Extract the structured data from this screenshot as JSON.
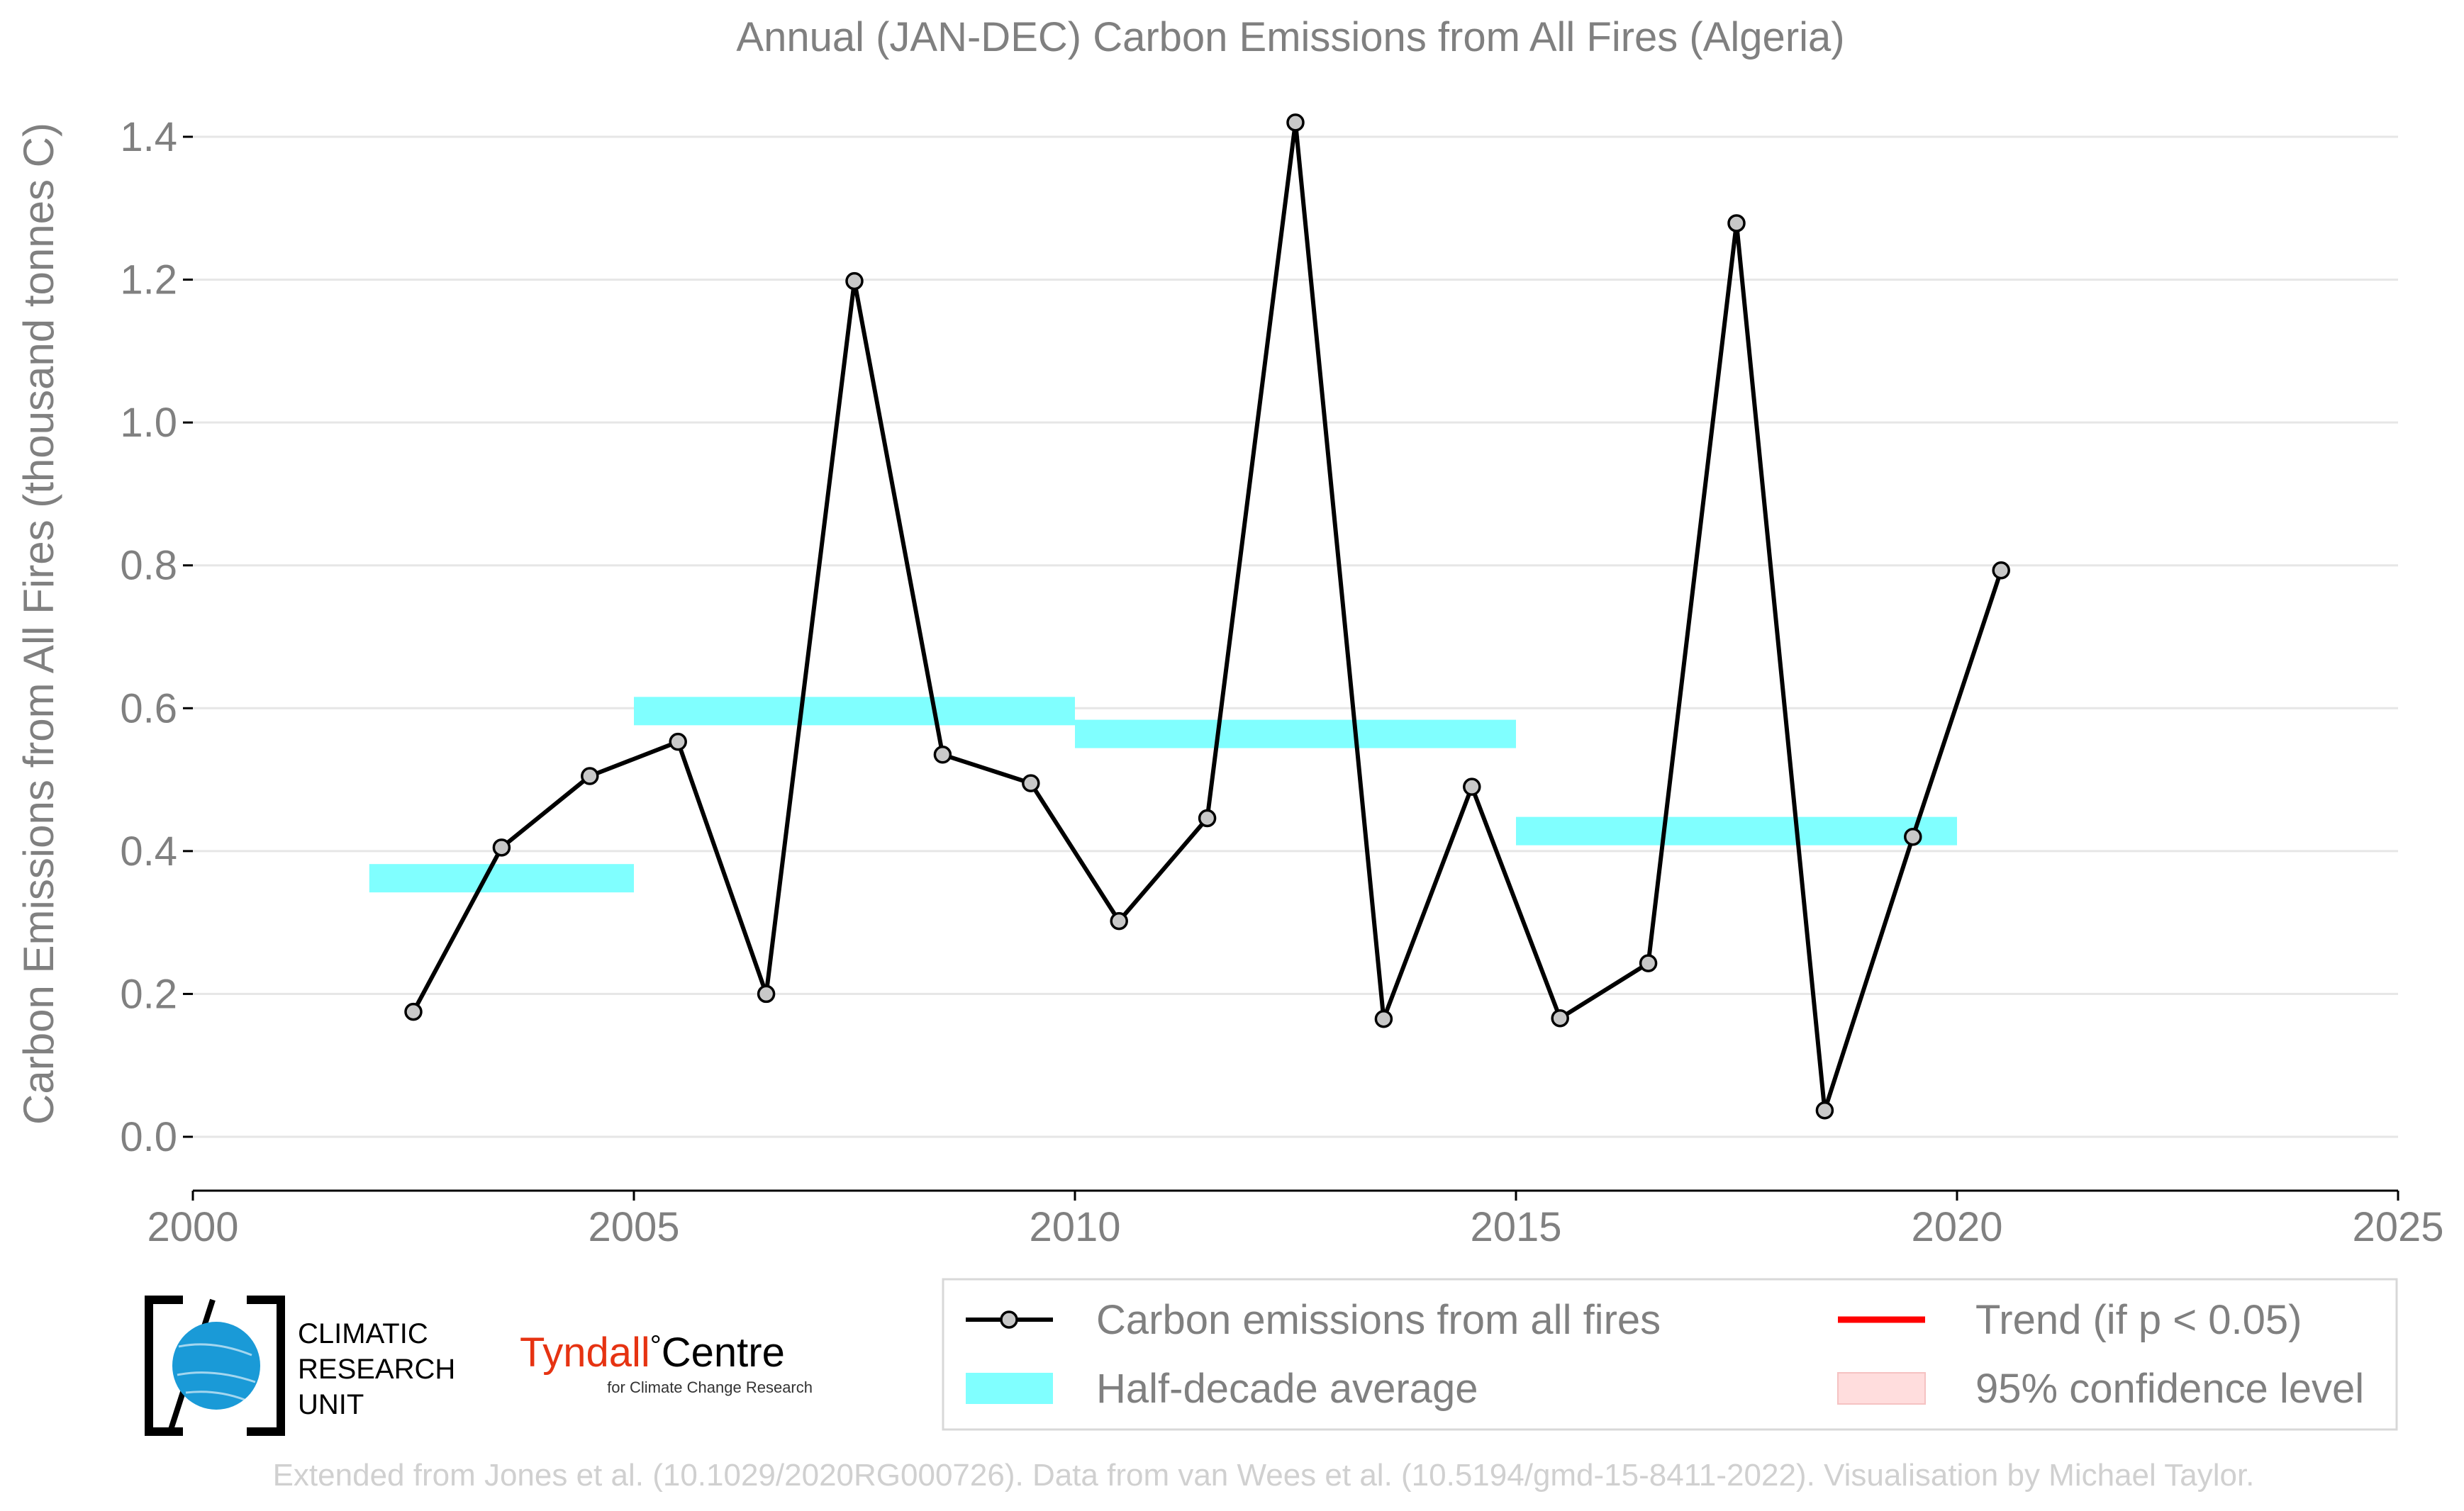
{
  "chart_data": {
    "type": "line",
    "title": "Annual (JAN-DEC) Carbon Emissions from All Fires (Algeria)",
    "xlabel": "",
    "ylabel": "Carbon Emissions from All Fires (thousand tonnes C)",
    "xlim": [
      2000,
      2025
    ],
    "ylim": [
      0.0,
      1.4
    ],
    "xticks": [
      2000,
      2005,
      2010,
      2015,
      2020,
      2025
    ],
    "yticks": [
      "0.0",
      "0.2",
      "0.4",
      "0.6",
      "0.8",
      "1.0",
      "1.2",
      "1.4"
    ],
    "grid": "horizontal",
    "series": [
      {
        "name": "Carbon emissions from all fires",
        "color": "#000000",
        "marker_fill": "#c8c8c8",
        "x": [
          2002.5,
          2003.5,
          2004.5,
          2005.5,
          2006.5,
          2007.5,
          2008.5,
          2009.5,
          2010.5,
          2011.5,
          2012.5,
          2013.5,
          2014.5,
          2015.5,
          2016.5,
          2017.5,
          2018.5,
          2019.5,
          2020.5
        ],
        "values": [
          0.175,
          0.405,
          0.505,
          0.553,
          0.2,
          1.198,
          0.535,
          0.495,
          0.302,
          0.446,
          1.42,
          0.165,
          0.49,
          0.166,
          0.243,
          1.279,
          0.037,
          0.42,
          0.793
        ]
      }
    ],
    "half_decade_average": {
      "name": "Half-decade average",
      "color": "#80ffff",
      "segments": [
        {
          "x0": 2002,
          "x1": 2005,
          "value": 0.362
        },
        {
          "x0": 2005,
          "x1": 2010,
          "value": 0.596
        },
        {
          "x0": 2010,
          "x1": 2015,
          "value": 0.564
        },
        {
          "x0": 2015,
          "x1": 2020,
          "value": 0.428
        }
      ]
    },
    "legend": {
      "placement": "bottom-right",
      "entries": [
        {
          "label": "Carbon emissions from all fires",
          "kind": "line-marker",
          "color": "#000000"
        },
        {
          "label": "Trend (if p < 0.05)",
          "kind": "line",
          "color": "#ff0000"
        },
        {
          "label": "Half-decade average",
          "kind": "band",
          "color": "#80ffff"
        },
        {
          "label": "95% confidence level",
          "kind": "band",
          "color": "#ffdddd"
        }
      ]
    },
    "footer": "Extended from Jones et al. (10.1029/2020RG000726). Data from van Wees et al. (10.5194/gmd-15-8411-2022). Visualisation by Michael Taylor."
  },
  "logos": {
    "cru_lines": [
      "CLIMATIC",
      "RESEARCH",
      "UNIT"
    ],
    "tyndall_main": "Tyndall",
    "tyndall_degree": "°",
    "tyndall_centre": "Centre",
    "tyndall_sub": "for Climate Change Research"
  }
}
